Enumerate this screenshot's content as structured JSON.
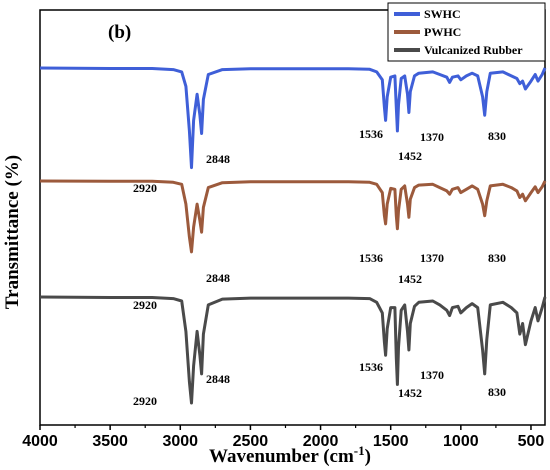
{
  "chart_data": {
    "type": "line",
    "panel_label": "(b)",
    "xlabel": "Wavenumber (cm",
    "xlabel_sup": "-1",
    "xlabel_end": ")",
    "ylabel": "Transmittance (%)",
    "xlim": [
      4000,
      400
    ],
    "x_ticks": [
      "4000",
      "3500",
      "3000",
      "2500",
      "2000",
      "1500",
      "1000",
      "500"
    ],
    "grid": false,
    "legend_position": "top-right",
    "series": [
      {
        "name": "SWHC",
        "color": "#3f5fd8",
        "peak_labels": [
          "2920",
          "2848",
          "1536",
          "1452",
          "1370",
          "830"
        ],
        "x": [
          4000,
          3500,
          3200,
          3050,
          2990,
          2960,
          2935,
          2920,
          2905,
          2880,
          2860,
          2848,
          2835,
          2800,
          2700,
          2500,
          2300,
          2000,
          1800,
          1650,
          1600,
          1560,
          1545,
          1536,
          1525,
          1500,
          1470,
          1460,
          1452,
          1444,
          1425,
          1400,
          1380,
          1370,
          1360,
          1330,
          1300,
          1200,
          1150,
          1100,
          1080,
          1060,
          1020,
          1000,
          960,
          920,
          880,
          845,
          830,
          815,
          790,
          700,
          640,
          600,
          580,
          560,
          540,
          500,
          470,
          450,
          420,
          400
        ],
        "y": [
          0,
          0.2,
          0.2,
          0.6,
          1.5,
          7,
          24,
          38,
          20,
          10,
          18,
          25,
          12,
          2.5,
          0.6,
          0.3,
          0.3,
          0.3,
          0.3,
          0.5,
          1.5,
          4.5,
          15,
          20,
          11,
          3.5,
          3,
          15,
          24,
          14,
          4,
          3,
          10,
          17,
          9,
          3,
          2,
          1.5,
          2.5,
          3.5,
          5.5,
          3.5,
          3,
          4.5,
          3,
          2,
          3,
          11,
          18,
          9,
          2,
          1.5,
          3,
          4,
          6,
          5,
          8,
          5,
          2.5,
          5,
          2.5,
          0
        ]
      },
      {
        "name": "PWHC",
        "color": "#9c5a3c",
        "peak_labels": [
          "2920",
          "2848",
          "1536",
          "1452",
          "1370",
          "830"
        ],
        "x": [
          4000,
          3500,
          3200,
          3050,
          2990,
          2960,
          2935,
          2920,
          2905,
          2880,
          2860,
          2848,
          2835,
          2800,
          2700,
          2500,
          2300,
          2000,
          1800,
          1650,
          1600,
          1560,
          1545,
          1536,
          1525,
          1500,
          1470,
          1460,
          1452,
          1444,
          1425,
          1400,
          1380,
          1370,
          1360,
          1330,
          1300,
          1200,
          1150,
          1100,
          1080,
          1060,
          1020,
          1000,
          960,
          920,
          880,
          845,
          830,
          815,
          790,
          700,
          640,
          600,
          580,
          560,
          540,
          500,
          470,
          450,
          420,
          400
        ],
        "y": [
          0,
          0.2,
          0.2,
          0.8,
          2,
          14,
          34,
          43,
          28,
          14,
          24,
          31,
          16,
          4,
          1,
          0.5,
          0.5,
          0.5,
          0.5,
          0.8,
          2,
          7,
          21,
          26,
          14,
          4.5,
          5,
          21,
          29,
          18,
          5,
          3,
          14,
          22,
          11,
          4,
          2.5,
          2,
          4,
          6,
          8,
          5,
          4,
          7,
          5,
          3,
          5,
          14,
          21,
          12,
          3,
          2,
          4,
          6,
          10,
          8,
          12,
          7,
          3.5,
          7,
          3.5,
          0
        ]
      },
      {
        "name": "Vulcanized Rubber",
        "color": "#4a4a4a",
        "peak_labels": [
          "2920",
          "2848",
          "1536",
          "1452",
          "1370",
          "830"
        ],
        "x": [
          4000,
          3500,
          3200,
          3050,
          2990,
          2960,
          2935,
          2920,
          2905,
          2880,
          2860,
          2848,
          2835,
          2800,
          2700,
          2500,
          2300,
          2000,
          1800,
          1650,
          1600,
          1560,
          1545,
          1536,
          1525,
          1500,
          1470,
          1460,
          1452,
          1444,
          1425,
          1400,
          1380,
          1370,
          1360,
          1330,
          1300,
          1200,
          1150,
          1100,
          1080,
          1060,
          1020,
          1000,
          960,
          920,
          880,
          845,
          830,
          815,
          790,
          700,
          640,
          600,
          580,
          560,
          540,
          500,
          470,
          450,
          420,
          400
        ],
        "y": [
          0,
          0.2,
          0.2,
          0.6,
          1.5,
          13,
          32,
          40,
          26,
          13,
          22,
          29,
          14,
          3,
          0.8,
          0.4,
          0.4,
          0.4,
          0.4,
          0.6,
          2,
          6,
          17,
          22,
          12,
          4,
          4,
          23,
          33,
          19,
          5,
          3,
          13,
          20,
          10,
          3.5,
          2,
          1.5,
          3,
          5,
          7,
          4,
          3.5,
          6,
          4,
          2.5,
          4,
          20,
          29,
          16,
          3,
          2,
          4,
          6,
          14,
          10,
          18,
          9,
          4,
          9,
          4,
          0
        ]
      }
    ]
  }
}
